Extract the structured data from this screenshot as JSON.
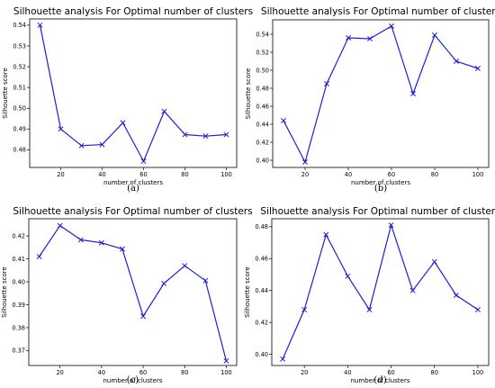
{
  "chart_data": [
    {
      "type": "line",
      "panel": "(a)",
      "title": "Silhouette analysis For Optimal number of clusters",
      "xlabel": "number of clusters",
      "ylabel": "Silhouette score",
      "x": [
        10,
        20,
        30,
        40,
        50,
        60,
        70,
        80,
        90,
        100
      ],
      "y": [
        0.54,
        0.49,
        0.482,
        0.4825,
        0.493,
        0.4745,
        0.4985,
        0.4873,
        0.4866,
        0.4873
      ],
      "xlim": [
        5,
        105
      ],
      "ylim": [
        0.4715,
        0.543
      ],
      "xticks": [
        20,
        40,
        60,
        80,
        100
      ],
      "yticks": [
        0.48,
        0.49,
        0.5,
        0.51,
        0.52,
        0.53,
        0.54
      ],
      "ytick_labels": [
        "0.48",
        "0.49",
        "0.50",
        "0.51",
        "0.52",
        "0.53",
        "0.54"
      ],
      "grid": false,
      "marker": "x",
      "color": "#1f1fd1"
    },
    {
      "type": "line",
      "panel": "(b)",
      "title": "Silhouette analysis For Optimal number of clusters",
      "xlabel": "number of clusters",
      "ylabel": "Silhouette score",
      "x": [
        10,
        20,
        30,
        40,
        50,
        60,
        70,
        80,
        90,
        100
      ],
      "y": [
        0.444,
        0.398,
        0.485,
        0.536,
        0.535,
        0.549,
        0.474,
        0.539,
        0.51,
        0.502
      ],
      "xlim": [
        5,
        105
      ],
      "ylim": [
        0.392,
        0.556
      ],
      "xticks": [
        20,
        40,
        60,
        80,
        100
      ],
      "yticks": [
        0.4,
        0.42,
        0.44,
        0.46,
        0.48,
        0.5,
        0.52,
        0.54
      ],
      "ytick_labels": [
        "0.40",
        "0.42",
        "0.44",
        "0.46",
        "0.48",
        "0.50",
        "0.52",
        "0.54"
      ],
      "grid": false,
      "marker": "x",
      "color": "#1f1fd1"
    },
    {
      "type": "line",
      "panel": "(c)",
      "title": "Silhouette analysis For Optimal number of clusters",
      "xlabel": "number of clusters",
      "ylabel": "Silhouette score",
      "x": [
        10,
        20,
        30,
        40,
        50,
        60,
        70,
        80,
        90,
        100
      ],
      "y": [
        0.411,
        0.4245,
        0.4183,
        0.417,
        0.4143,
        0.385,
        0.3993,
        0.407,
        0.4005,
        0.3655
      ],
      "xlim": [
        5,
        105
      ],
      "ylim": [
        0.3635,
        0.4275
      ],
      "xticks": [
        20,
        40,
        60,
        80,
        100
      ],
      "yticks": [
        0.37,
        0.38,
        0.39,
        0.4,
        0.41,
        0.42
      ],
      "ytick_labels": [
        "0.37",
        "0.38",
        "0.39",
        "0.40",
        "0.41",
        "0.42"
      ],
      "grid": false,
      "marker": "x",
      "color": "#1f1fd1"
    },
    {
      "type": "line",
      "panel": "(d)",
      "title": "Silhouette analysis For Optimal number of clusters",
      "xlabel": "number of clusters",
      "ylabel": "Silhouette score",
      "x": [
        10,
        20,
        30,
        40,
        50,
        60,
        70,
        80,
        90,
        100
      ],
      "y": [
        0.397,
        0.428,
        0.475,
        0.449,
        0.428,
        0.481,
        0.44,
        0.458,
        0.437,
        0.428
      ],
      "xlim": [
        5,
        105
      ],
      "ylim": [
        0.393,
        0.485
      ],
      "xticks": [
        20,
        40,
        60,
        80,
        100
      ],
      "yticks": [
        0.4,
        0.42,
        0.44,
        0.46,
        0.48
      ],
      "ytick_labels": [
        "0.40",
        "0.42",
        "0.44",
        "0.46",
        "0.48"
      ],
      "grid": false,
      "marker": "x",
      "color": "#1f1fd1"
    }
  ]
}
